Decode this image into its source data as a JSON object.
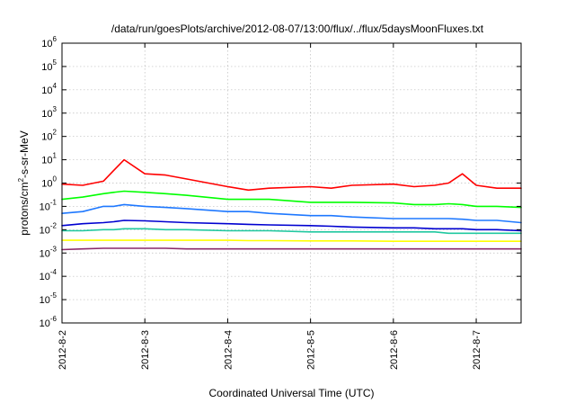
{
  "chart_data": {
    "type": "line",
    "title": "/data/run/goesPlots/archive/2012-08-07/13:00/flux/../flux/5daysMoonFluxes.txt",
    "xlabel": "Coordinated Universal Time (UTC)",
    "ylabel": {
      "base": "protons/cm",
      "sup": "2",
      "rest": "-s-sr-MeV"
    },
    "y_scale": "log",
    "ylim": [
      1e-06,
      1000000.0
    ],
    "xlim": [
      "2012-08-02",
      "2012-08-07 13:00"
    ],
    "grid": true,
    "legend": "none",
    "y_ticks": [
      {
        "base": "10",
        "exp": "-6",
        "value": 1e-06
      },
      {
        "base": "10",
        "exp": "-5",
        "value": 1e-05
      },
      {
        "base": "10",
        "exp": "-4",
        "value": 0.0001
      },
      {
        "base": "10",
        "exp": "-3",
        "value": 0.001
      },
      {
        "base": "10",
        "exp": "-2",
        "value": 0.01
      },
      {
        "base": "10",
        "exp": "-1",
        "value": 0.1
      },
      {
        "base": "10",
        "exp": "0",
        "value": 1
      },
      {
        "base": "10",
        "exp": "1",
        "value": 10
      },
      {
        "base": "10",
        "exp": "2",
        "value": 100
      },
      {
        "base": "10",
        "exp": "3",
        "value": 1000
      },
      {
        "base": "10",
        "exp": "4",
        "value": 10000
      },
      {
        "base": "10",
        "exp": "5",
        "value": 100000
      },
      {
        "base": "10",
        "exp": "6",
        "value": 1000000
      }
    ],
    "x_ticks": [
      "2012-8-2",
      "2012-8-3",
      "2012-8-4",
      "2012-8-5",
      "2012-8-6",
      "2012-8-7"
    ],
    "x_tick_dates": [
      "2012-08-02",
      "2012-08-03",
      "2012-08-04",
      "2012-08-05",
      "2012-08-06",
      "2012-08-07"
    ],
    "x": [
      "2012-08-02 00:00",
      "2012-08-02 06:00",
      "2012-08-02 12:00",
      "2012-08-02 15:00",
      "2012-08-02 18:00",
      "2012-08-03 00:00",
      "2012-08-03 06:00",
      "2012-08-03 12:00",
      "2012-08-04 00:00",
      "2012-08-04 06:00",
      "2012-08-04 12:00",
      "2012-08-05 00:00",
      "2012-08-05 06:00",
      "2012-08-05 12:00",
      "2012-08-06 00:00",
      "2012-08-06 06:00",
      "2012-08-06 12:00",
      "2012-08-06 16:00",
      "2012-08-06 20:00",
      "2012-08-07 00:00",
      "2012-08-07 06:00",
      "2012-08-07 13:00"
    ],
    "series": [
      {
        "color": "#ff0000",
        "values": [
          0.9,
          0.8,
          1.2,
          3.5,
          10,
          2.5,
          2.2,
          1.5,
          0.7,
          0.5,
          0.6,
          0.7,
          0.6,
          0.8,
          0.9,
          0.7,
          0.8,
          1.0,
          2.5,
          0.8,
          0.6,
          0.6
        ]
      },
      {
        "color": "#00ff00",
        "values": [
          0.2,
          0.25,
          0.35,
          0.4,
          0.45,
          0.4,
          0.35,
          0.3,
          0.2,
          0.2,
          0.2,
          0.15,
          0.15,
          0.15,
          0.14,
          0.12,
          0.12,
          0.13,
          0.12,
          0.1,
          0.1,
          0.09
        ]
      },
      {
        "color": "#1e78ff",
        "values": [
          0.05,
          0.06,
          0.1,
          0.1,
          0.12,
          0.1,
          0.09,
          0.08,
          0.06,
          0.06,
          0.05,
          0.04,
          0.04,
          0.035,
          0.03,
          0.03,
          0.03,
          0.03,
          0.028,
          0.025,
          0.025,
          0.02
        ]
      },
      {
        "color": "#0000d0",
        "values": [
          0.015,
          0.018,
          0.02,
          0.022,
          0.025,
          0.024,
          0.022,
          0.02,
          0.018,
          0.017,
          0.016,
          0.015,
          0.014,
          0.013,
          0.012,
          0.012,
          0.011,
          0.011,
          0.011,
          0.01,
          0.01,
          0.009
        ]
      },
      {
        "color": "#20c8a0",
        "values": [
          0.009,
          0.009,
          0.01,
          0.01,
          0.011,
          0.011,
          0.01,
          0.01,
          0.009,
          0.009,
          0.009,
          0.008,
          0.008,
          0.008,
          0.008,
          0.008,
          0.008,
          0.007,
          0.007,
          0.007,
          0.007,
          0.007
        ]
      },
      {
        "color": "#ffff00",
        "values": [
          0.0035,
          0.0035,
          0.0035,
          0.0035,
          0.0035,
          0.0035,
          0.0035,
          0.0035,
          0.0035,
          0.0034,
          0.0034,
          0.0033,
          0.0033,
          0.0033,
          0.0032,
          0.0032,
          0.0032,
          0.0032,
          0.0032,
          0.0032,
          0.0032,
          0.0032
        ]
      },
      {
        "color": "#8b2a6a",
        "values": [
          0.0014,
          0.0015,
          0.0016,
          0.0016,
          0.0016,
          0.0016,
          0.0016,
          0.0015,
          0.0015,
          0.0015,
          0.0015,
          0.0015,
          0.0015,
          0.0015,
          0.0015,
          0.0015,
          0.0015,
          0.0015,
          0.0015,
          0.0015,
          0.0015,
          0.0015
        ]
      }
    ]
  }
}
